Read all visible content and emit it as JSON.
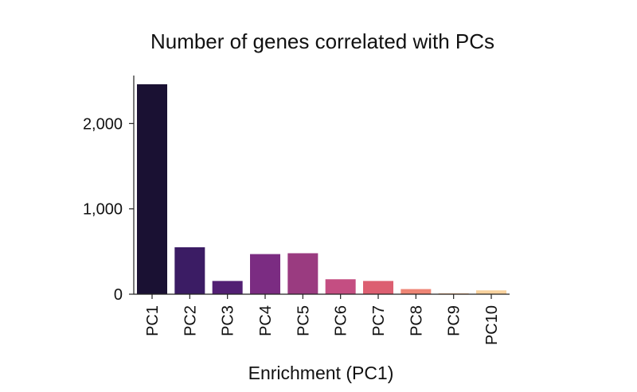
{
  "chart_data": {
    "type": "bar",
    "title": "Number of genes correlated with PCs",
    "xlabel": "Enrichment (PC1)",
    "ylabel": "",
    "categories": [
      "PC1",
      "PC2",
      "PC3",
      "PC4",
      "PC5",
      "PC6",
      "PC7",
      "PC8",
      "PC9",
      "PC10"
    ],
    "values": [
      2460,
      550,
      155,
      470,
      480,
      175,
      155,
      60,
      10,
      45
    ],
    "colors": [
      "#1a1133",
      "#3b1c64",
      "#521f73",
      "#7b2c82",
      "#9a3b80",
      "#c44e82",
      "#dc5f71",
      "#ee8575",
      "#f6b27f",
      "#f8d29e"
    ],
    "ylim": [
      0,
      2600
    ],
    "yticks": [
      0,
      1000,
      2000
    ],
    "ytick_labels": [
      "0",
      "1,000",
      "2,000"
    ],
    "grid": false,
    "legend": "none"
  }
}
